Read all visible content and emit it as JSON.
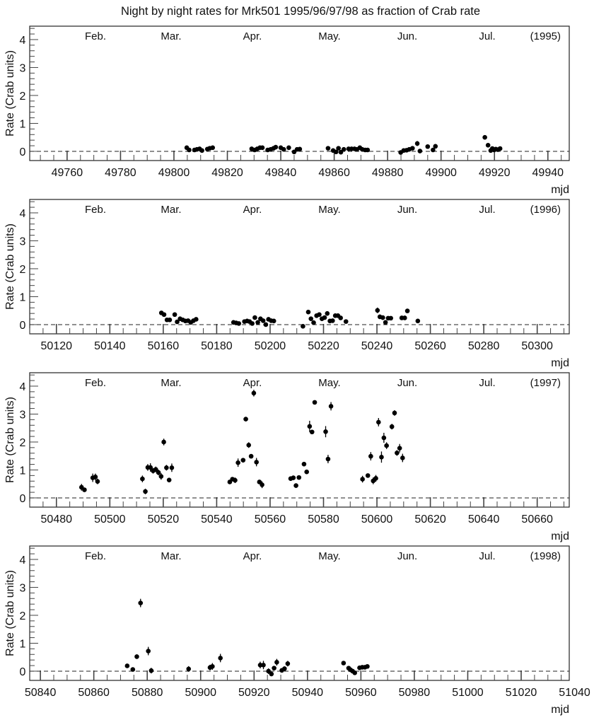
{
  "chart_data": {
    "type": "scatter",
    "title": "Night by night rates for Mrk501 1995/96/97/98 as fraction of Crab rate",
    "panels": [
      {
        "year_label": "(1995)",
        "xlabel": "mjd",
        "ylabel": "Rate (Crab units)",
        "xlim": [
          49746,
          49948
        ],
        "ylim": [
          -0.33,
          4.48
        ],
        "xticks": [
          49760,
          49780,
          49800,
          49820,
          49840,
          49860,
          49880,
          49900,
          49920,
          49940
        ],
        "yticks": [
          0,
          1,
          2,
          3,
          4
        ],
        "months": [
          "Feb.",
          "Mar.",
          "Apr.",
          "May.",
          "Jun.",
          "Jul."
        ],
        "points": [
          [
            49804.8,
            0.13,
            0.05
          ],
          [
            49805.7,
            0.05,
            0.05
          ],
          [
            49807.7,
            0.05,
            0.04
          ],
          [
            49808.6,
            0.07,
            0.04
          ],
          [
            49809.6,
            0.09,
            0.04
          ],
          [
            49810.5,
            0.03,
            0.04
          ],
          [
            49812.5,
            0.08,
            0.04
          ],
          [
            49813.4,
            0.11,
            0.04
          ],
          [
            49814.5,
            0.13,
            0.04
          ],
          [
            49829.1,
            0.09,
            0.05
          ],
          [
            49830.2,
            0.05,
            0.04
          ],
          [
            49831.2,
            0.09,
            0.04
          ],
          [
            49832.2,
            0.13,
            0.04
          ],
          [
            49833.1,
            0.13,
            0.04
          ],
          [
            49835.1,
            0.05,
            0.04
          ],
          [
            49836.2,
            0.07,
            0.04
          ],
          [
            49837.3,
            0.11,
            0.04
          ],
          [
            49838.1,
            0.15,
            0.04
          ],
          [
            49840.0,
            0.13,
            0.04
          ],
          [
            49841.1,
            0.07,
            0.04
          ],
          [
            49843.0,
            0.13,
            0.04
          ],
          [
            49845.0,
            -0.02,
            0.05
          ],
          [
            49846.1,
            0.07,
            0.04
          ],
          [
            49847.1,
            0.08,
            0.04
          ],
          [
            49857.7,
            0.11,
            0.05
          ],
          [
            49859.6,
            0.03,
            0.04
          ],
          [
            49860.7,
            -0.02,
            0.04
          ],
          [
            49861.6,
            0.11,
            0.04
          ],
          [
            49862.5,
            -0.03,
            0.05
          ],
          [
            49863.6,
            0.07,
            0.04
          ],
          [
            49865.4,
            0.09,
            0.04
          ],
          [
            49866.5,
            0.09,
            0.04
          ],
          [
            49867.6,
            0.09,
            0.04
          ],
          [
            49868.5,
            0.07,
            0.04
          ],
          [
            49869.6,
            0.13,
            0.05
          ],
          [
            49870.5,
            0.07,
            0.04
          ],
          [
            49871.6,
            0.05,
            0.04
          ],
          [
            49872.5,
            0.05,
            0.04
          ],
          [
            49884.9,
            -0.04,
            0.05
          ],
          [
            49886.0,
            0.03,
            0.04
          ],
          [
            49887.1,
            0.04,
            0.04
          ],
          [
            49888.1,
            0.07,
            0.04
          ],
          [
            49889.3,
            0.11,
            0.05
          ],
          [
            49891.1,
            0.28,
            0.09
          ],
          [
            49892.1,
            0.01,
            0.05
          ],
          [
            49895.0,
            0.17,
            0.05
          ],
          [
            49897.0,
            0.05,
            0.05
          ],
          [
            49897.9,
            0.18,
            0.07
          ],
          [
            49916.4,
            0.5,
            0.05
          ],
          [
            49917.6,
            0.22,
            0.05
          ],
          [
            49918.6,
            0.03,
            0.05
          ],
          [
            49919.2,
            0.1,
            0.05
          ],
          [
            49919.9,
            0.05,
            0.04
          ],
          [
            49920.5,
            0.08,
            0.04
          ],
          [
            49921.3,
            0.06,
            0.04
          ],
          [
            49922.1,
            0.1,
            0.04
          ]
        ]
      },
      {
        "year_label": "(1996)",
        "xlabel": "mjd",
        "ylabel": "Rate (Crab units)",
        "xlim": [
          50110,
          50312
        ],
        "ylim": [
          -0.33,
          4.48
        ],
        "xticks": [
          50120,
          50140,
          50160,
          50180,
          50200,
          50220,
          50240,
          50260,
          50280,
          50300
        ],
        "yticks": [
          0,
          1,
          2,
          3,
          4
        ],
        "months": [
          "Feb.",
          "Mar.",
          "Apr.",
          "May.",
          "Jun.",
          "Jul."
        ],
        "points": [
          [
            50159.3,
            0.42,
            0.05
          ],
          [
            50160.3,
            0.36,
            0.05
          ],
          [
            50161.4,
            0.17,
            0.05
          ],
          [
            50162.4,
            0.17,
            0.05
          ],
          [
            50164.3,
            0.36,
            0.08
          ],
          [
            50165.2,
            0.1,
            0.05
          ],
          [
            50166.3,
            0.21,
            0.05
          ],
          [
            50167.3,
            0.17,
            0.05
          ],
          [
            50168.3,
            0.13,
            0.05
          ],
          [
            50169.3,
            0.14,
            0.05
          ],
          [
            50170.3,
            0.08,
            0.06
          ],
          [
            50171.3,
            0.14,
            0.05
          ],
          [
            50172.3,
            0.19,
            0.05
          ],
          [
            50186.3,
            0.08,
            0.05
          ],
          [
            50187.3,
            0.06,
            0.04
          ],
          [
            50188.3,
            0.04,
            0.04
          ],
          [
            50190.4,
            0.11,
            0.04
          ],
          [
            50191.4,
            0.13,
            0.04
          ],
          [
            50192.3,
            0.11,
            0.04
          ],
          [
            50193.3,
            0.04,
            0.05
          ],
          [
            50194.3,
            0.25,
            0.07
          ],
          [
            50195.4,
            0.08,
            0.05
          ],
          [
            50196.4,
            0.21,
            0.05
          ],
          [
            50197.4,
            0.14,
            0.05
          ],
          [
            50198.4,
            0.0,
            0.05
          ],
          [
            50199.4,
            0.19,
            0.05
          ],
          [
            50200.4,
            0.14,
            0.05
          ],
          [
            50201.4,
            0.13,
            0.04
          ],
          [
            50212.3,
            -0.06,
            0.05
          ],
          [
            50214.3,
            0.45,
            0.05
          ],
          [
            50215.3,
            0.21,
            0.05
          ],
          [
            50216.3,
            0.07,
            0.05
          ],
          [
            50217.4,
            0.32,
            0.07
          ],
          [
            50218.4,
            0.36,
            0.08
          ],
          [
            50219.4,
            0.21,
            0.08
          ],
          [
            50220.4,
            0.25,
            0.05
          ],
          [
            50221.4,
            0.4,
            0.08
          ],
          [
            50222.4,
            0.13,
            0.05
          ],
          [
            50223.4,
            0.14,
            0.05
          ],
          [
            50224.4,
            0.32,
            0.08
          ],
          [
            50225.4,
            0.32,
            0.08
          ],
          [
            50226.4,
            0.24,
            0.05
          ],
          [
            50228.4,
            0.11,
            0.04
          ],
          [
            50240.2,
            0.51,
            0.1
          ],
          [
            50241.1,
            0.28,
            0.08
          ],
          [
            50242.2,
            0.25,
            0.08
          ],
          [
            50243.2,
            0.08,
            0.05
          ],
          [
            50244.2,
            0.23,
            0.06
          ],
          [
            50245.2,
            0.23,
            0.06
          ],
          [
            50249.3,
            0.24,
            0.04
          ],
          [
            50250.4,
            0.24,
            0.04
          ],
          [
            50251.4,
            0.49,
            0.05
          ],
          [
            50255.3,
            0.13,
            0.04
          ]
        ]
      },
      {
        "year_label": "(1997)",
        "xlabel": "mjd",
        "ylabel": "Rate (Crab units)",
        "xlim": [
          50470,
          50672
        ],
        "ylim": [
          -0.33,
          4.48
        ],
        "xticks": [
          50480,
          50500,
          50520,
          50540,
          50560,
          50580,
          50600,
          50620,
          50640,
          50660
        ],
        "yticks": [
          0,
          1,
          2,
          3,
          4
        ],
        "months": [
          "Feb.",
          "Mar.",
          "Apr.",
          "May.",
          "Jun.",
          "Jul."
        ],
        "points": [
          [
            50489.4,
            0.38,
            0.12
          ],
          [
            50490.5,
            0.29,
            0.08
          ],
          [
            50493.6,
            0.72,
            0.15
          ],
          [
            50494.6,
            0.75,
            0.12
          ],
          [
            50495.4,
            0.59,
            0.1
          ],
          [
            50512.2,
            0.68,
            0.12
          ],
          [
            50513.3,
            0.23,
            0.1
          ],
          [
            50514.2,
            1.09,
            0.12
          ],
          [
            50515.2,
            1.09,
            0.15
          ],
          [
            50516.2,
            0.97,
            0.1
          ],
          [
            50517.2,
            1.02,
            0.1
          ],
          [
            50518.2,
            0.91,
            0.1
          ],
          [
            50519.2,
            0.77,
            0.12
          ],
          [
            50520.2,
            2.0,
            0.12
          ],
          [
            50521.2,
            1.08,
            0.1
          ],
          [
            50522.2,
            0.64,
            0.08
          ],
          [
            50523.2,
            1.08,
            0.15
          ],
          [
            50544.9,
            0.57,
            0.06
          ],
          [
            50545.9,
            0.67,
            0.07
          ],
          [
            50546.9,
            0.63,
            0.1
          ],
          [
            50548.0,
            1.26,
            0.15
          ],
          [
            50549.9,
            1.35,
            0.08
          ],
          [
            50550.9,
            2.82,
            0.08
          ],
          [
            50552.0,
            1.89,
            0.1
          ],
          [
            50552.9,
            1.49,
            0.06
          ],
          [
            50553.9,
            3.75,
            0.12
          ],
          [
            50554.9,
            1.28,
            0.15
          ],
          [
            50556.0,
            0.57,
            0.08
          ],
          [
            50557.0,
            0.47,
            0.12
          ],
          [
            50567.7,
            0.69,
            0.08
          ],
          [
            50568.7,
            0.72,
            0.08
          ],
          [
            50569.7,
            0.44,
            0.08
          ],
          [
            50570.8,
            0.73,
            0.06
          ],
          [
            50572.7,
            1.21,
            0.08
          ],
          [
            50573.7,
            0.93,
            0.05
          ],
          [
            50574.8,
            2.56,
            0.2
          ],
          [
            50575.7,
            2.36,
            0.08
          ],
          [
            50576.7,
            3.42,
            0.06
          ],
          [
            50580.8,
            2.37,
            0.2
          ],
          [
            50581.7,
            1.39,
            0.15
          ],
          [
            50582.8,
            3.28,
            0.15
          ],
          [
            50594.6,
            0.67,
            0.12
          ],
          [
            50596.6,
            0.8,
            0.06
          ],
          [
            50597.7,
            1.49,
            0.15
          ],
          [
            50598.6,
            0.61,
            0.12
          ],
          [
            50599.6,
            0.7,
            0.12
          ],
          [
            50600.6,
            2.71,
            0.15
          ],
          [
            50601.7,
            1.46,
            0.2
          ],
          [
            50602.6,
            2.15,
            0.18
          ],
          [
            50603.6,
            1.87,
            0.12
          ],
          [
            50605.6,
            2.55,
            0.1
          ],
          [
            50606.6,
            3.04,
            0.1
          ],
          [
            50607.5,
            1.61,
            0.1
          ],
          [
            50608.5,
            1.78,
            0.15
          ],
          [
            50609.6,
            1.43,
            0.15
          ]
        ]
      },
      {
        "year_label": "(1998)",
        "xlabel": "mjd",
        "ylabel": "Rate (Crab units)",
        "xlim": [
          50836,
          51038
        ],
        "ylim": [
          -0.33,
          4.48
        ],
        "xticks": [
          50840,
          50860,
          50880,
          50900,
          50920,
          50940,
          50960,
          50980,
          51000,
          51020,
          51040
        ],
        "yticks": [
          0,
          1,
          2,
          3,
          4
        ],
        "months": [
          "Feb.",
          "Mar.",
          "Apr.",
          "May.",
          "Jun.",
          "Jul."
        ],
        "points": [
          [
            50872.5,
            0.19,
            0.06
          ],
          [
            50874.6,
            0.06,
            0.06
          ],
          [
            50876.1,
            0.52,
            0.08
          ],
          [
            50877.5,
            2.44,
            0.15
          ],
          [
            50880.4,
            0.72,
            0.15
          ],
          [
            50881.5,
            0.02,
            0.1
          ],
          [
            50895.5,
            0.08,
            0.1
          ],
          [
            50903.5,
            0.13,
            0.1
          ],
          [
            50904.4,
            0.17,
            0.12
          ],
          [
            50907.4,
            0.47,
            0.15
          ],
          [
            50922.3,
            0.22,
            0.12
          ],
          [
            50923.5,
            0.22,
            0.15
          ],
          [
            50925.4,
            0.0,
            0.1
          ],
          [
            50926.5,
            -0.1,
            0.08
          ],
          [
            50927.5,
            0.11,
            0.08
          ],
          [
            50928.5,
            0.32,
            0.12
          ],
          [
            50930.4,
            0.03,
            0.08
          ],
          [
            50931.4,
            0.09,
            0.08
          ],
          [
            50932.6,
            0.27,
            0.1
          ],
          [
            50953.5,
            0.29,
            0.06
          ],
          [
            50955.4,
            0.11,
            0.05
          ],
          [
            50956.1,
            0.05,
            0.05
          ],
          [
            50956.9,
            0.0,
            0.05
          ],
          [
            50957.7,
            -0.06,
            0.05
          ],
          [
            50959.5,
            0.12,
            0.05
          ],
          [
            50960.5,
            0.14,
            0.05
          ],
          [
            50961.5,
            0.14,
            0.05
          ],
          [
            50962.4,
            0.17,
            0.05
          ]
        ]
      }
    ]
  }
}
